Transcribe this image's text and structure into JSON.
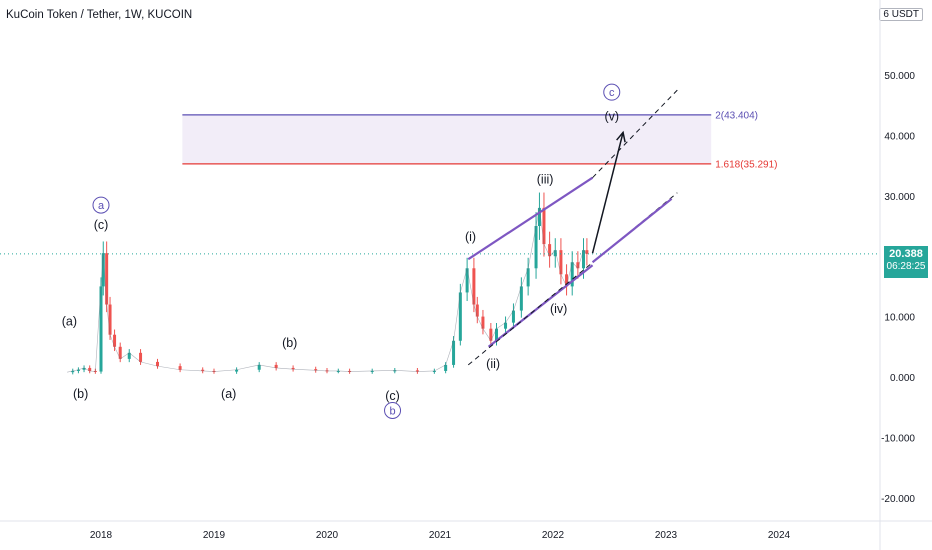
{
  "chart_data": {
    "type": "candlestick",
    "title": "KuCoin Token / Tether, 1W, KUCOIN",
    "unit": "USDT",
    "unit_prefix": "6",
    "y_ticks": [
      "50.000",
      "40.000",
      "30.000",
      "20.000",
      "10.000",
      "0.000",
      "-10.000",
      "-20.000"
    ],
    "y_tick_values": [
      50,
      40,
      30,
      20,
      10,
      0,
      -10,
      -20
    ],
    "x_ticks": [
      "2018",
      "2019",
      "2020",
      "2021",
      "2022",
      "2023",
      "2024"
    ],
    "ylim": [
      -22,
      62
    ],
    "current_price": "20.388",
    "current_price_value": 20.388,
    "countdown": "06:28:25",
    "fib_levels": [
      {
        "label": "2(43.404)",
        "value": 43.404,
        "color": "#5b4fb3"
      },
      {
        "label": "1.618(35.291)",
        "value": 35.291,
        "color": "#e53935"
      }
    ],
    "price_series": {
      "t": [
        2017.7,
        2017.75,
        2017.8,
        2017.85,
        2017.9,
        2017.95,
        2018.0,
        2018.02,
        2018.05,
        2018.08,
        2018.12,
        2018.17,
        2018.25,
        2018.35,
        2018.5,
        2018.7,
        2018.9,
        2019.0,
        2019.2,
        2019.4,
        2019.55,
        2019.7,
        2019.9,
        2020.0,
        2020.1,
        2020.2,
        2020.4,
        2020.6,
        2020.8,
        2020.95,
        2021.05,
        2021.12,
        2021.18,
        2021.24,
        2021.3,
        2021.33,
        2021.38,
        2021.45,
        2021.5,
        2021.58,
        2021.65,
        2021.72,
        2021.78,
        2021.85,
        2021.88,
        2021.92,
        2021.97,
        2022.02,
        2022.07,
        2022.12,
        2022.17,
        2022.22,
        2022.27,
        2022.3
      ],
      "close": [
        0.8,
        1.0,
        1.2,
        1.5,
        1.0,
        0.9,
        15.0,
        20.5,
        12.0,
        7.0,
        5.0,
        3.0,
        4.0,
        2.5,
        1.8,
        1.2,
        1.0,
        0.9,
        1.2,
        2.0,
        1.5,
        1.3,
        1.1,
        1.0,
        1.0,
        0.9,
        1.0,
        1.1,
        0.9,
        1.0,
        2.0,
        6.0,
        14.0,
        18.0,
        12.0,
        10.0,
        8.0,
        6.0,
        8.0,
        9.0,
        11.0,
        15.0,
        18.0,
        25.0,
        28.0,
        22.0,
        20.0,
        21.0,
        17.0,
        15.0,
        19.0,
        18.0,
        21.0,
        20.388
      ]
    },
    "channel": {
      "upper": {
        "x": [
          2021.25,
          2022.35
        ],
        "y": [
          19.5,
          33.0
        ]
      },
      "lower": {
        "x": [
          2021.43,
          2022.35
        ],
        "y": [
          5.0,
          18.5
        ]
      },
      "upper_ext": {
        "x": [
          2022.35,
          2023.1
        ],
        "y": [
          33.0,
          47.5
        ]
      },
      "lower_ext": {
        "x": [
          2021.25,
          2023.1
        ],
        "y": [
          2.0,
          30.5
        ]
      },
      "parallel": {
        "x": [
          2022.35,
          2023.05
        ],
        "y": [
          19.0,
          29.5
        ]
      }
    },
    "projection_arrow": {
      "x": [
        2022.35,
        2022.62
      ],
      "y": [
        20.5,
        40.5
      ]
    },
    "zone": {
      "x": [
        2018.72,
        2023.4
      ],
      "y": [
        35.291,
        43.404
      ]
    },
    "wave_labels": [
      {
        "text": "(a)",
        "x": 2017.72,
        "y": 8.5
      },
      {
        "text": "(b)",
        "x": 2017.82,
        "y": -3.5
      },
      {
        "text": "(c)",
        "x": 2018.0,
        "y": 24.5
      },
      {
        "text": "a",
        "x": 2018.0,
        "y": 27.8,
        "circled": true
      },
      {
        "text": "(a)",
        "x": 2019.13,
        "y": -3.5
      },
      {
        "text": "(b)",
        "x": 2019.67,
        "y": 5.0
      },
      {
        "text": "(c)",
        "x": 2020.58,
        "y": -3.8
      },
      {
        "text": "b",
        "x": 2020.58,
        "y": -6.2,
        "circled": true
      },
      {
        "text": "(i)",
        "x": 2021.27,
        "y": 22.5
      },
      {
        "text": "(ii)",
        "x": 2021.47,
        "y": 1.5
      },
      {
        "text": "(iii)",
        "x": 2021.93,
        "y": 32.0
      },
      {
        "text": "(iv)",
        "x": 2022.05,
        "y": 10.6
      },
      {
        "text": "(v)",
        "x": 2022.52,
        "y": 42.5
      },
      {
        "text": "c",
        "x": 2022.52,
        "y": 46.5,
        "circled": true
      }
    ]
  }
}
